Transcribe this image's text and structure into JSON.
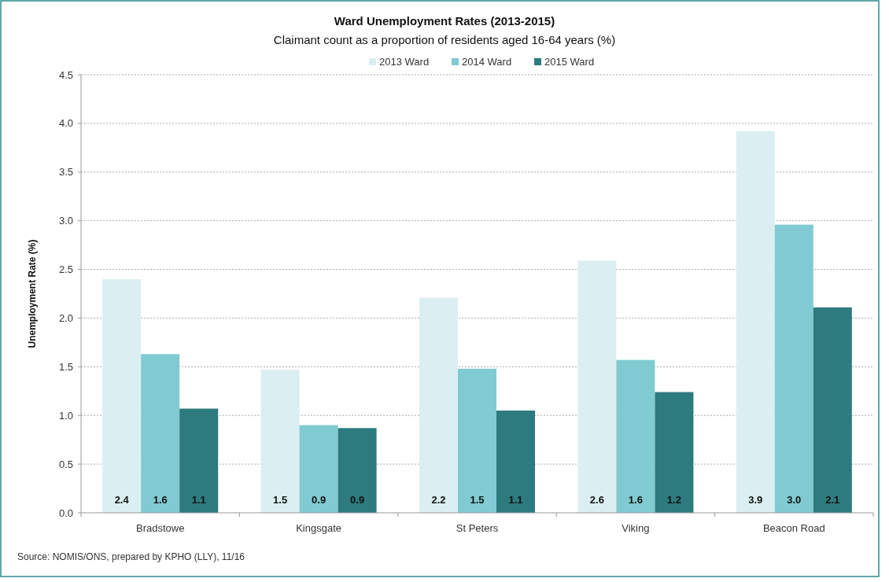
{
  "chart_data": {
    "type": "bar",
    "title": "Ward Unemployment Rates (2013-2015)",
    "subtitle": "Claimant count as a proportion of residents aged 16-64 years (%)",
    "ylabel": "Unemployment Rate (%)",
    "categories": [
      "Bradstowe",
      "Kingsgate",
      "St Peters",
      "Viking",
      "Beacon Road"
    ],
    "series": [
      {
        "name": "2013 Ward",
        "color": "#dbeff2",
        "values": [
          2.4,
          1.47,
          2.21,
          2.59,
          3.92
        ],
        "value_labels": [
          "2.4",
          "1.5",
          "2.2",
          "2.6",
          "3.9"
        ]
      },
      {
        "name": "2014 Ward",
        "color": "#7fcbd1",
        "values": [
          1.63,
          0.9,
          1.48,
          1.57,
          2.96
        ],
        "value_labels": [
          "1.6",
          "0.9",
          "1.5",
          "1.6",
          "3.0"
        ]
      },
      {
        "name": "2015 Ward",
        "color": "#2d7a7f",
        "values": [
          1.07,
          0.87,
          1.05,
          1.24,
          2.11
        ],
        "value_labels": [
          "1.1",
          "0.9",
          "1.1",
          "1.2",
          "2.1"
        ]
      }
    ],
    "ylim": [
      0,
      4.5
    ],
    "yticks": [
      {
        "value": 0,
        "label": "0.0"
      },
      {
        "value": 0.5,
        "label": "0.5"
      },
      {
        "value": 1,
        "label": "1.0"
      },
      {
        "value": 1.5,
        "label": "1.5"
      },
      {
        "value": 2,
        "label": "2.0"
      },
      {
        "value": 2.5,
        "label": "2.5"
      },
      {
        "value": 3,
        "label": "3.0"
      },
      {
        "value": 3.5,
        "label": "3.5"
      },
      {
        "value": 4,
        "label": "4.0"
      },
      {
        "value": 4.5,
        "label": "4.5"
      }
    ],
    "grid": "y",
    "legend": "top",
    "annotations": [
      "Source: NOMIS/ONS, prepared by KPHO (LLY), 11/16"
    ]
  }
}
